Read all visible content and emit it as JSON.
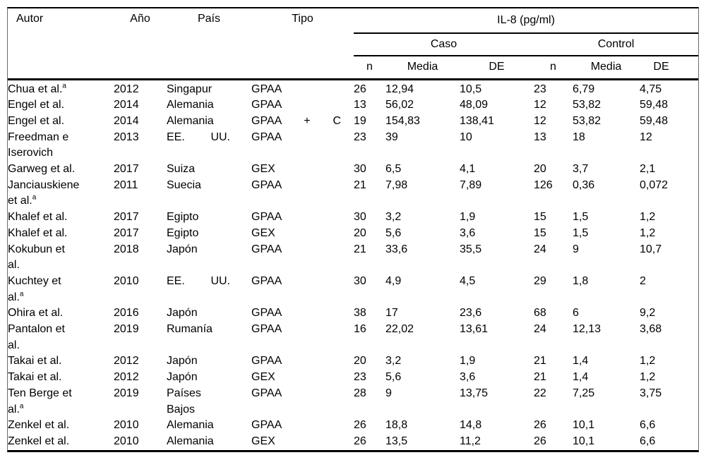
{
  "colors": {
    "background": "#ffffff",
    "text": "#000000",
    "rule": "#000000",
    "frame": "#6a6a6a"
  },
  "table": {
    "columns": {
      "autor": "Autor",
      "ano": "Año",
      "pais": "País",
      "tipo": "Tipo"
    },
    "group_header": "IL-8 (pg/ml)",
    "subgroups": [
      "Caso",
      "Control"
    ],
    "measure_headers": [
      "n",
      "Media",
      "DE"
    ],
    "rows": [
      {
        "autor": "Chua et al.",
        "sup": "a",
        "ano": "2012",
        "pais": "Singapur",
        "tipo": "GPAA",
        "caso": {
          "n": "26",
          "media": "12,94",
          "de": "10,5"
        },
        "control": {
          "n": "23",
          "media": "6,79",
          "de": "4,75"
        }
      },
      {
        "autor": "Engel et al.",
        "ano": "2014",
        "pais": "Alemania",
        "tipo": "GPAA",
        "caso": {
          "n": "13",
          "media": "56,02",
          "de": "48,09"
        },
        "control": {
          "n": "12",
          "media": "53,82",
          "de": "59,48"
        }
      },
      {
        "autor": "Engel et al.",
        "ano": "2014",
        "pais": "Alemania",
        "tipo": "GPAA + C",
        "tipo_spread": true,
        "caso": {
          "n": "19",
          "media": "154,83",
          "de": "138,41"
        },
        "control": {
          "n": "12",
          "media": "53,82",
          "de": "59,48"
        }
      },
      {
        "autor": "Freedman e\nIserovich",
        "ano": "2013",
        "pais": "EE. UU.",
        "pais_spread": true,
        "tipo": "GPAA",
        "caso": {
          "n": "23",
          "media": "39",
          "de": "10"
        },
        "control": {
          "n": "13",
          "media": "18",
          "de": "12"
        }
      },
      {
        "autor": "Garweg et al.",
        "ano": "2017",
        "pais": "Suiza",
        "tipo": "GEX",
        "caso": {
          "n": "30",
          "media": "6,5",
          "de": "4,1"
        },
        "control": {
          "n": "20",
          "media": "3,7",
          "de": "2,1"
        }
      },
      {
        "autor": "Janciauskiene\net al.",
        "sup": "a",
        "ano": "2011",
        "pais": "Suecia",
        "tipo": "GPAA",
        "caso": {
          "n": "21",
          "media": "7,98",
          "de": "7,89"
        },
        "control": {
          "n": "126",
          "media": "0,36",
          "de": "0,072"
        }
      },
      {
        "autor": "Khalef et al.",
        "ano": "2017",
        "pais": "Egipto",
        "tipo": "GPAA",
        "caso": {
          "n": "30",
          "media": "3,2",
          "de": "1,9"
        },
        "control": {
          "n": "15",
          "media": "1,5",
          "de": "1,2"
        }
      },
      {
        "autor": "Khalef et al.",
        "ano": "2017",
        "pais": "Egipto",
        "tipo": "GEX",
        "caso": {
          "n": "20",
          "media": "5,6",
          "de": "3,6"
        },
        "control": {
          "n": "15",
          "media": "1,5",
          "de": "1,2"
        }
      },
      {
        "autor": "Kokubun et\nal.",
        "ano": "2018",
        "pais": "Japón",
        "tipo": "GPAA",
        "caso": {
          "n": "21",
          "media": "33,6",
          "de": "35,5"
        },
        "control": {
          "n": "24",
          "media": "9",
          "de": "10,7"
        }
      },
      {
        "autor": "Kuchtey et\nal.",
        "sup": "a",
        "ano": "2010",
        "pais": "EE. UU.",
        "pais_spread": true,
        "tipo": "GPAA",
        "caso": {
          "n": "30",
          "media": "4,9",
          "de": "4,5"
        },
        "control": {
          "n": "29",
          "media": "1,8",
          "de": "2"
        }
      },
      {
        "autor": "Ohira et al.",
        "ano": "2016",
        "pais": "Japón",
        "tipo": "GPAA",
        "caso": {
          "n": "38",
          "media": "17",
          "de": "23,6"
        },
        "control": {
          "n": "68",
          "media": "6",
          "de": "9,2"
        }
      },
      {
        "autor": "Pantalon et\nal.",
        "ano": "2019",
        "pais": "Rumanía",
        "tipo": "GPAA",
        "caso": {
          "n": "16",
          "media": "22,02",
          "de": "13,61"
        },
        "control": {
          "n": "24",
          "media": "12,13",
          "de": "3,68"
        }
      },
      {
        "autor": "Takai et al.",
        "ano": "2012",
        "pais": "Japón",
        "tipo": "GPAA",
        "caso": {
          "n": "20",
          "media": "3,2",
          "de": "1,9"
        },
        "control": {
          "n": "21",
          "media": "1,4",
          "de": "1,2"
        }
      },
      {
        "autor": "Takai et al.",
        "ano": "2012",
        "pais": "Japón",
        "tipo": "GEX",
        "caso": {
          "n": "23",
          "media": "5,6",
          "de": "3,6"
        },
        "control": {
          "n": "21",
          "media": "1,4",
          "de": "1,2"
        }
      },
      {
        "autor": "Ten Berge et\nal.",
        "sup": "a",
        "ano": "2019",
        "pais": "Países\nBajos",
        "tipo": "GPAA",
        "caso": {
          "n": "28",
          "media": "9",
          "de": "13,75"
        },
        "control": {
          "n": "22",
          "media": "7,25",
          "de": "3,75"
        }
      },
      {
        "autor": "Zenkel et al.",
        "ano": "2010",
        "pais": "Alemania",
        "tipo": "GPAA",
        "caso": {
          "n": "26",
          "media": "18,8",
          "de": "14,8"
        },
        "control": {
          "n": "26",
          "media": "10,1",
          "de": "6,6"
        }
      },
      {
        "autor": "Zenkel et al.",
        "ano": "2010",
        "pais": "Alemania",
        "tipo": "GEX",
        "caso": {
          "n": "26",
          "media": "13,5",
          "de": "11,2"
        },
        "control": {
          "n": "26",
          "media": "10,1",
          "de": "6,6"
        }
      }
    ]
  }
}
